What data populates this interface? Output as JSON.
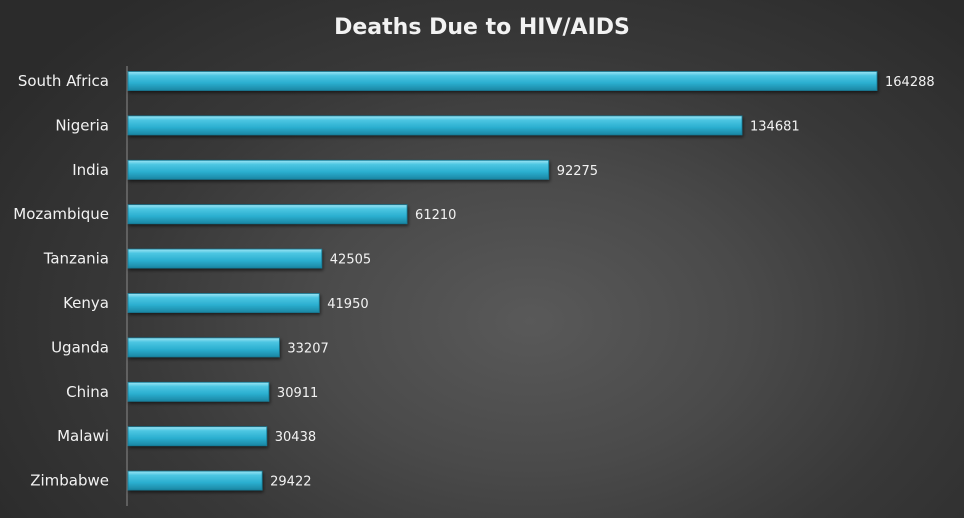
{
  "chart_data": {
    "type": "bar",
    "orientation": "horizontal",
    "title": "Deaths Due to HIV/AIDS",
    "xlabel": "",
    "ylabel": "",
    "categories": [
      "South Africa",
      "Nigeria",
      "India",
      "Mozambique",
      "Tanzania",
      "Kenya",
      "Uganda",
      "China",
      "Malawi",
      "Zimbabwe"
    ],
    "values": [
      164288,
      134681,
      92275,
      61210,
      42505,
      41950,
      33207,
      30911,
      30438,
      29422
    ],
    "xlim": [
      0,
      164288
    ],
    "grid": false,
    "legend": "none",
    "data_labels": true,
    "bar_color": "#2fb4d4"
  }
}
